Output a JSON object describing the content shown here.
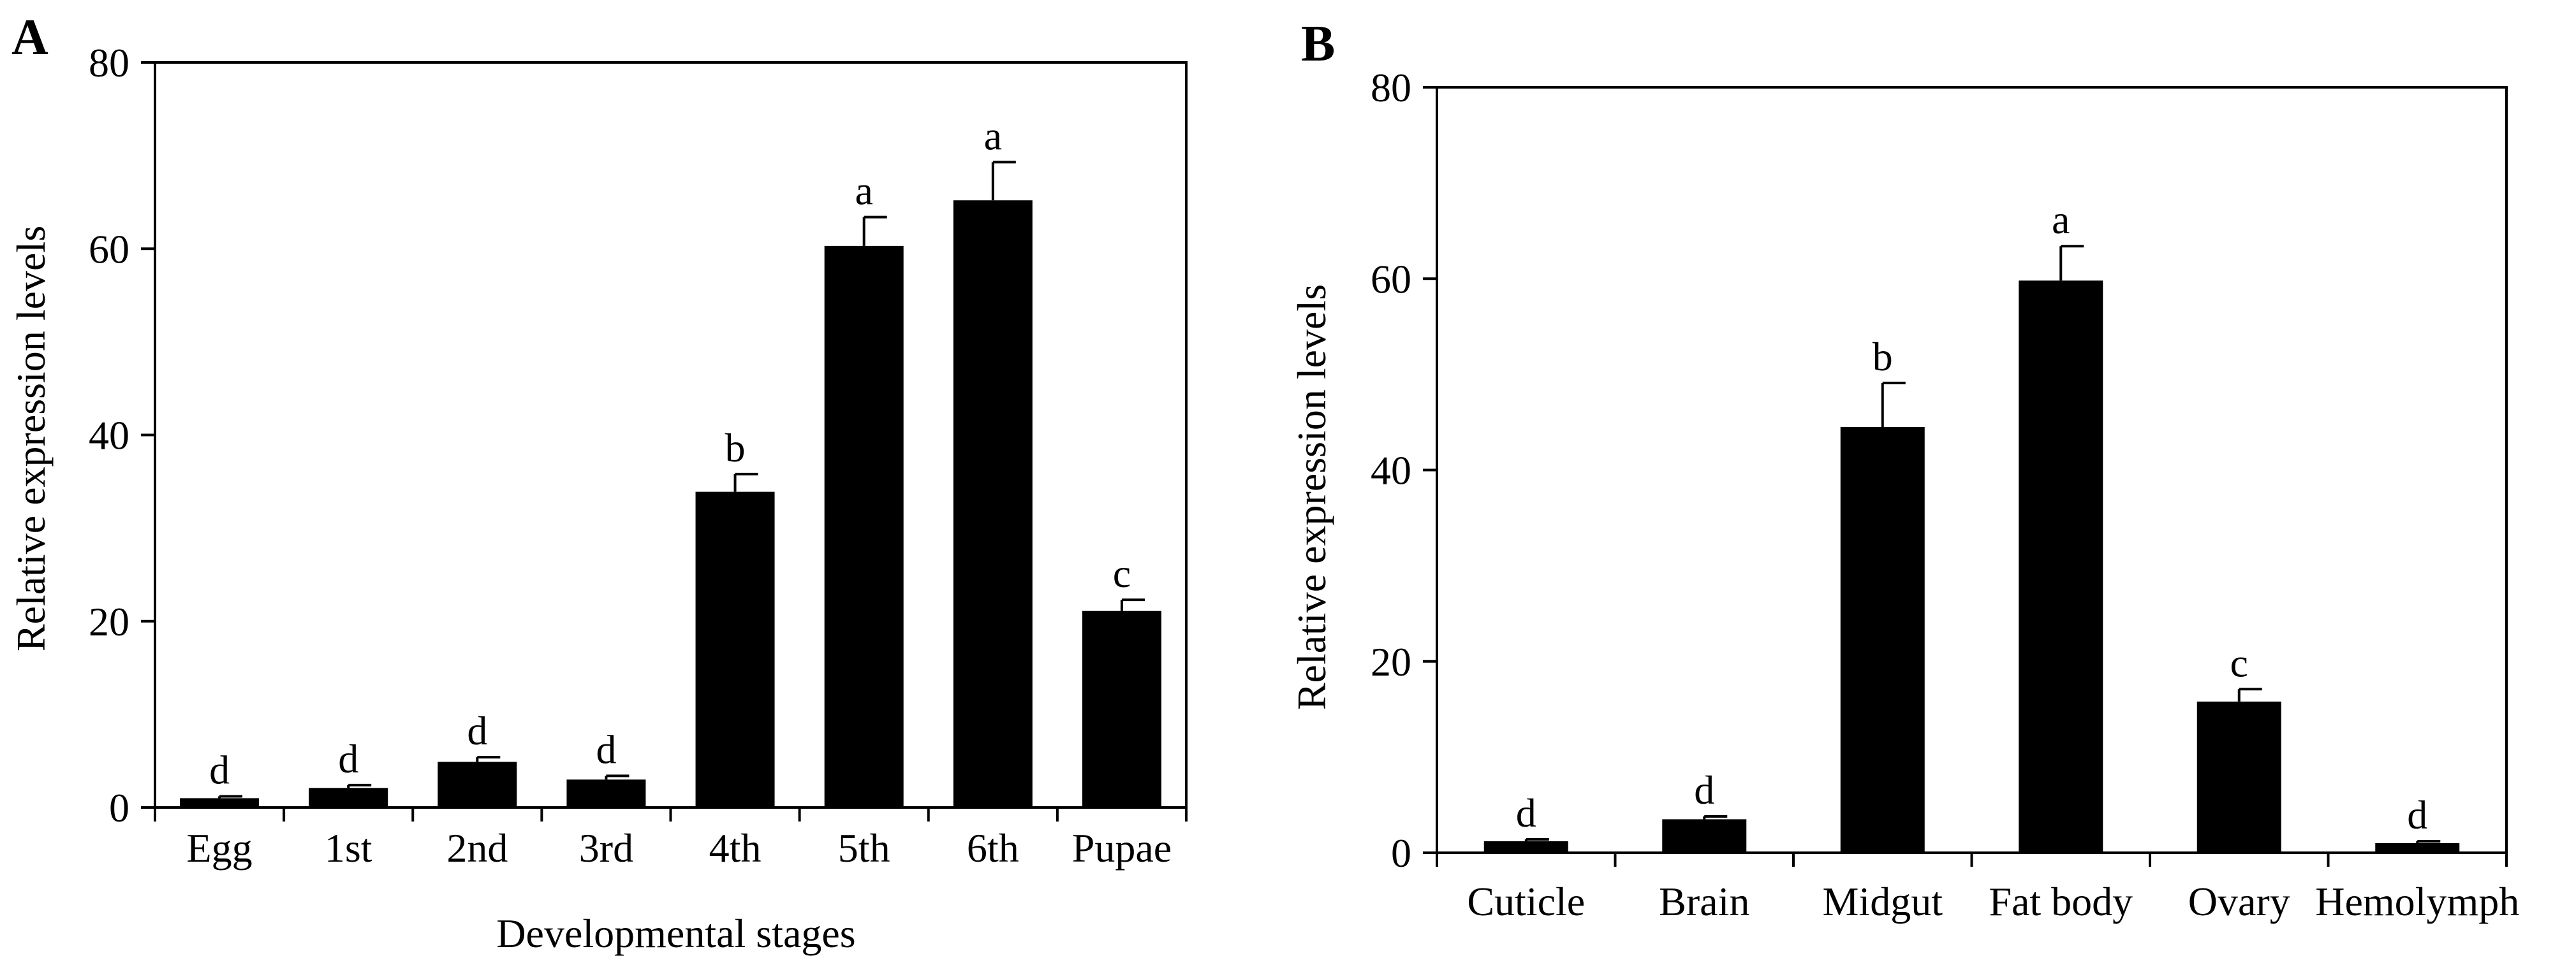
{
  "chart_data": [
    {
      "type": "bar",
      "panel_label": "A",
      "title": "",
      "xlabel": "Developmental stages",
      "ylabel": "Relative expression levels",
      "ylim": [
        0,
        80
      ],
      "yticks": [
        0,
        20,
        40,
        60,
        80
      ],
      "categories": [
        "Egg",
        "1st",
        "2nd",
        "3rd",
        "4th",
        "5th",
        "6th",
        "Pupae"
      ],
      "values": [
        1.0,
        2.1,
        4.9,
        3.0,
        33.9,
        60.3,
        65.2,
        21.1
      ],
      "errors": [
        0.2,
        0.3,
        0.5,
        0.4,
        1.9,
        3.1,
        4.1,
        1.2
      ],
      "significance": [
        "d",
        "d",
        "d",
        "d",
        "b",
        "a",
        "a",
        "c"
      ],
      "grid": false,
      "bar_color": "#000000"
    },
    {
      "type": "bar",
      "panel_label": "B",
      "title": "",
      "xlabel": "",
      "ylabel": "Relative expression levels",
      "ylim": [
        0,
        80
      ],
      "yticks": [
        0,
        20,
        40,
        60,
        80
      ],
      "categories": [
        "Cuticle",
        "Brain",
        "Midgut",
        "Fat body",
        "Ovary",
        "Hemolymph"
      ],
      "values": [
        1.2,
        3.5,
        44.5,
        59.8,
        15.8,
        1.0
      ],
      "errors": [
        0.2,
        0.3,
        4.6,
        3.6,
        1.3,
        0.2
      ],
      "significance": [
        "d",
        "d",
        "b",
        "a",
        "c",
        "d"
      ],
      "grid": false,
      "bar_color": "#000000"
    }
  ]
}
